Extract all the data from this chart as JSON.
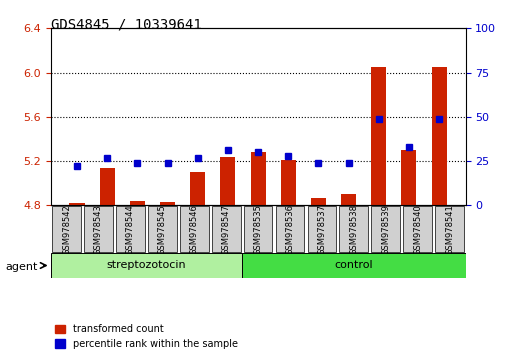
{
  "title": "GDS4845 / 10339641",
  "samples": [
    "GSM978542",
    "GSM978543",
    "GSM978544",
    "GSM978545",
    "GSM978546",
    "GSM978547",
    "GSM978535",
    "GSM978536",
    "GSM978537",
    "GSM978538",
    "GSM978539",
    "GSM978540",
    "GSM978541"
  ],
  "groups": [
    "streptozotocin",
    "streptozotocin",
    "streptozotocin",
    "streptozotocin",
    "streptozotocin",
    "streptozotocin",
    "control",
    "control",
    "control",
    "control",
    "control",
    "control",
    "control"
  ],
  "transformed_count": [
    4.82,
    5.14,
    4.84,
    4.83,
    5.1,
    5.24,
    5.28,
    5.21,
    4.87,
    4.9,
    6.05,
    5.3,
    6.05
  ],
  "percentile_rank": [
    22,
    27,
    24,
    24,
    27,
    31,
    30,
    28,
    24,
    24,
    49,
    33,
    49
  ],
  "ylim_left": [
    4.8,
    6.4
  ],
  "ylim_right": [
    0,
    100
  ],
  "yticks_left": [
    4.8,
    5.2,
    5.6,
    6.0,
    6.4
  ],
  "yticks_right": [
    0,
    25,
    50,
    75,
    100
  ],
  "bar_color": "#cc2200",
  "marker_color": "#0000cc",
  "group_colors": {
    "streptozotocin": "#90ee90",
    "control": "#44dd44"
  },
  "streptozotocin_color": "#b8f0b0",
  "control_color": "#55dd55",
  "grid_color": "#000000",
  "background_color": "#ffffff",
  "agent_label": "agent",
  "legend_transformed": "transformed count",
  "legend_percentile": "percentile rank within the sample",
  "xlabel": "",
  "ylabel_left": "",
  "ylabel_right": ""
}
